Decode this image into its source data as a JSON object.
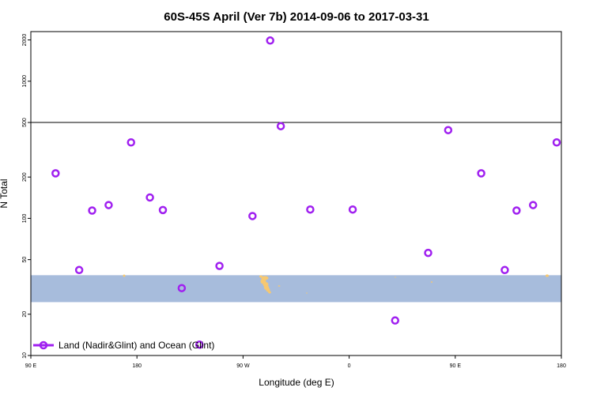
{
  "chart_data": {
    "type": "scatter",
    "title": "60S-45S April (Ver 7b)   2014-09-06 to 2017-03-31",
    "xlabel": "Longitude (deg E)",
    "ylabel": "N Total",
    "x_ticks": [
      {
        "value": 0,
        "label": "90 E"
      },
      {
        "value": 90,
        "label": "180"
      },
      {
        "value": 180,
        "label": "90 W"
      },
      {
        "value": 270,
        "label": "0"
      },
      {
        "value": 360,
        "label": "90 E"
      },
      {
        "value": 450,
        "label": "180"
      }
    ],
    "xlim": [
      0,
      450
    ],
    "y_scale": "log",
    "ylim": [
      10,
      2300
    ],
    "y_ticks": [
      10,
      20,
      50,
      100,
      200,
      500,
      1000,
      2000
    ],
    "reference_line_y": 500,
    "latitude_band": {
      "y_range": [
        24.5,
        38.5
      ],
      "color": "#a7bcdc"
    },
    "land_color": "#f7c870",
    "series": [
      {
        "name": "Land (Nadir&Glint) and Ocean (Glint)",
        "color": "#a020f0",
        "points": [
          {
            "x": 21,
            "y": 213
          },
          {
            "x": 41,
            "y": 42
          },
          {
            "x": 52,
            "y": 114
          },
          {
            "x": 66,
            "y": 125
          },
          {
            "x": 85,
            "y": 358
          },
          {
            "x": 101,
            "y": 142
          },
          {
            "x": 112,
            "y": 115
          },
          {
            "x": 128,
            "y": 31
          },
          {
            "x": 143,
            "y": 12
          },
          {
            "x": 160,
            "y": 45
          },
          {
            "x": 188,
            "y": 104
          },
          {
            "x": 203,
            "y": 1980
          },
          {
            "x": 212,
            "y": 470
          },
          {
            "x": 237,
            "y": 116
          },
          {
            "x": 273,
            "y": 116
          },
          {
            "x": 309,
            "y": 18
          },
          {
            "x": 337,
            "y": 56
          },
          {
            "x": 354,
            "y": 440
          },
          {
            "x": 382,
            "y": 213
          },
          {
            "x": 402,
            "y": 42
          },
          {
            "x": 412,
            "y": 114
          },
          {
            "x": 426,
            "y": 125
          },
          {
            "x": 446,
            "y": 358
          }
        ]
      }
    ],
    "legend": {
      "position": "bottom-left"
    }
  }
}
